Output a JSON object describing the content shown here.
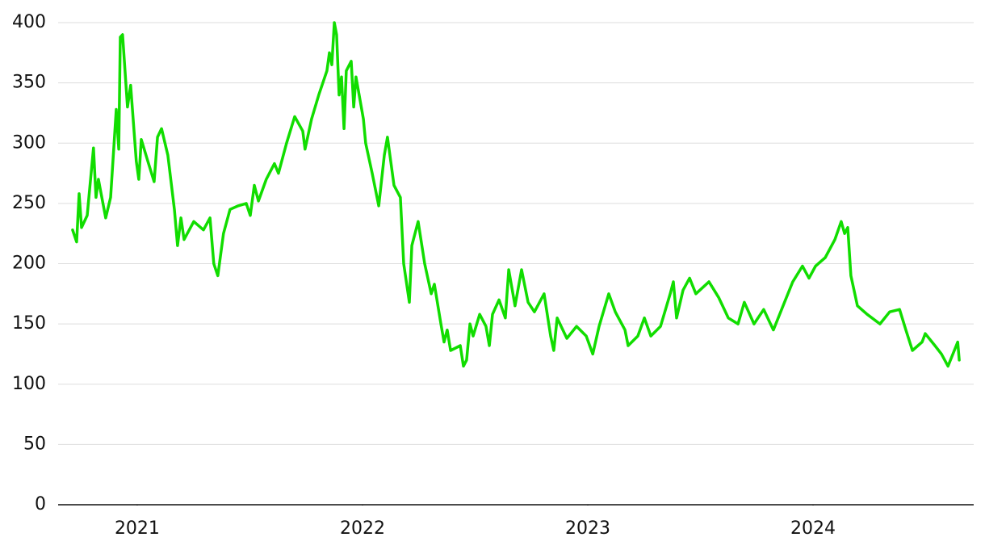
{
  "chart_data": {
    "type": "line",
    "color": "#11dd00",
    "grid": true,
    "xlim": [
      2020.649,
      2024.713
    ],
    "xticks": [
      2021,
      2022,
      2023,
      2024
    ],
    "ylim": [
      0,
      400
    ],
    "yticks": [
      0,
      50,
      100,
      150,
      200,
      250,
      300,
      350,
      400
    ],
    "x": [
      2020.713,
      2020.731,
      2020.742,
      2020.753,
      2020.778,
      2020.806,
      2020.817,
      2020.828,
      2020.86,
      2020.882,
      2020.907,
      2020.918,
      2020.925,
      2020.935,
      2020.957,
      2020.971,
      2020.996,
      2021.007,
      2021.018,
      2021.047,
      2021.075,
      2021.09,
      2021.108,
      2021.136,
      2021.165,
      2021.179,
      2021.194,
      2021.208,
      2021.251,
      2021.294,
      2021.323,
      2021.34,
      2021.358,
      2021.383,
      2021.412,
      2021.448,
      2021.484,
      2021.502,
      2021.52,
      2021.538,
      2021.573,
      2021.609,
      2021.627,
      2021.663,
      2021.699,
      2021.735,
      2021.745,
      2021.774,
      2021.806,
      2021.842,
      2021.853,
      2021.864,
      2021.875,
      2021.885,
      2021.896,
      2021.907,
      2021.918,
      2021.928,
      2021.95,
      2021.961,
      2021.971,
      2022.004,
      2022.014,
      2022.043,
      2022.072,
      2022.097,
      2022.111,
      2022.14,
      2022.168,
      2022.183,
      2022.208,
      2022.219,
      2022.247,
      2022.276,
      2022.305,
      2022.319,
      2022.348,
      2022.362,
      2022.376,
      2022.391,
      2022.434,
      2022.448,
      2022.462,
      2022.477,
      2022.491,
      2022.52,
      2022.548,
      2022.563,
      2022.577,
      2022.606,
      2022.634,
      2022.649,
      2022.677,
      2022.706,
      2022.735,
      2022.763,
      2022.806,
      2022.835,
      2022.849,
      2022.864,
      2022.907,
      2022.95,
      2022.993,
      2023.022,
      2023.05,
      2023.093,
      2023.122,
      2023.165,
      2023.179,
      2023.222,
      2023.251,
      2023.28,
      2023.323,
      2023.366,
      2023.38,
      2023.394,
      2023.423,
      2023.452,
      2023.48,
      2023.538,
      2023.581,
      2023.624,
      2023.667,
      2023.695,
      2023.738,
      2023.781,
      2023.824,
      2023.867,
      2023.91,
      2023.953,
      2023.982,
      2024.011,
      2024.054,
      2024.097,
      2024.125,
      2024.14,
      2024.154,
      2024.168,
      2024.197,
      2024.24,
      2024.297,
      2024.34,
      2024.384,
      2024.412,
      2024.441,
      2024.484,
      2024.498,
      2024.541,
      2024.57,
      2024.599,
      2024.627,
      2024.642,
      2024.649
    ],
    "values": [
      228,
      218,
      258,
      230,
      240,
      296,
      255,
      270,
      238,
      255,
      328,
      295,
      388,
      390,
      330,
      348,
      285,
      270,
      303,
      285,
      268,
      305,
      312,
      290,
      245,
      215,
      238,
      220,
      235,
      228,
      238,
      200,
      190,
      225,
      245,
      248,
      250,
      240,
      265,
      252,
      270,
      283,
      275,
      300,
      322,
      310,
      295,
      320,
      340,
      360,
      375,
      365,
      400,
      390,
      340,
      355,
      312,
      360,
      368,
      330,
      355,
      320,
      300,
      275,
      248,
      290,
      305,
      265,
      255,
      200,
      168,
      215,
      235,
      200,
      175,
      183,
      150,
      135,
      145,
      128,
      132,
      115,
      120,
      150,
      140,
      158,
      148,
      132,
      158,
      170,
      155,
      195,
      165,
      195,
      168,
      160,
      175,
      140,
      128,
      155,
      138,
      148,
      140,
      125,
      148,
      175,
      160,
      145,
      132,
      140,
      155,
      140,
      148,
      175,
      185,
      155,
      178,
      188,
      175,
      185,
      172,
      155,
      150,
      168,
      150,
      162,
      145,
      165,
      185,
      198,
      188,
      198,
      205,
      220,
      235,
      225,
      230,
      190,
      165,
      158,
      150,
      160,
      162,
      145,
      128,
      135,
      142,
      132,
      125,
      115,
      128,
      135,
      120
    ]
  }
}
